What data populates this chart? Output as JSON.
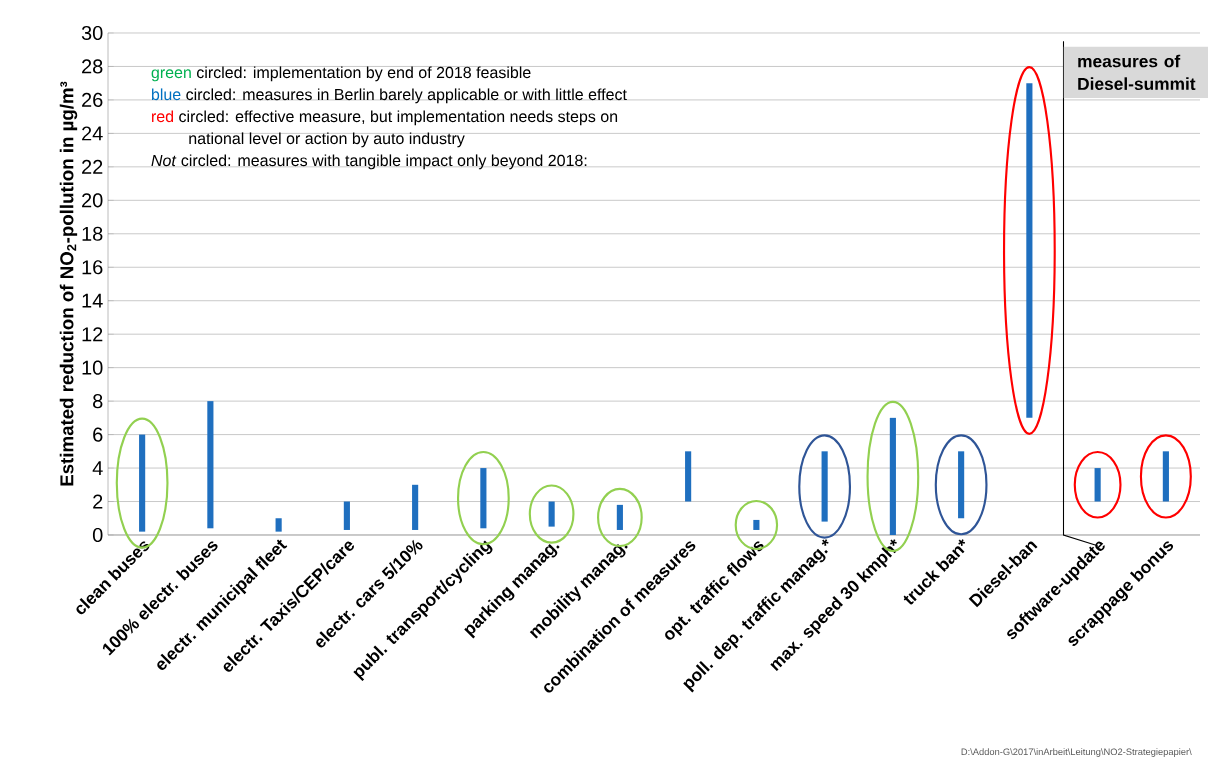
{
  "chart_data": {
    "type": "bar",
    "ylabel": "Estimated reduction of NO$_{2}$-pollution in µg/m³",
    "categories": [
      "clean buses",
      "100% electr. buses",
      "electr. municipal fleet",
      "electr. Taxis/CEP/care",
      "electr. cars 5/10%",
      "publ. transport/cycling",
      "parking manag.",
      "mobility manag.",
      "combination of measures",
      "opt. traffic flows",
      "poll. dep. traffic manag.*",
      "max. speed 30 kmph*",
      "truck ban*",
      "Diesel-ban",
      "software-update",
      "scrappage bonus"
    ],
    "base": [
      0.2,
      0.4,
      0.2,
      0.3,
      0.3,
      0.4,
      0.5,
      0.3,
      2,
      0.3,
      0.8,
      0,
      1,
      7,
      2,
      2
    ],
    "values": [
      5.8,
      7.6,
      0.8,
      1.7,
      2.7,
      3.6,
      1.5,
      1.5,
      3,
      0.6,
      4.2,
      7,
      4,
      20,
      2,
      3
    ],
    "color": "#1f6fbf",
    "ylim": [
      0,
      30
    ],
    "yticks": [
      0,
      2,
      4,
      6,
      8,
      10,
      12,
      14,
      16,
      18,
      20,
      22,
      24,
      26,
      28,
      30
    ],
    "grid": "y",
    "annotations": [
      "green",
      "circled: implementation by end of 2018 feasible",
      "blue",
      "circled: measures in Berlin barely applicable or with little effect",
      "red",
      "circled: effective measure, but implementation needs steps on",
      "national level or action by auto industry",
      "*Not* circled: measures with tangible impact only beyond 2018:",
      "measures of Diesel-summit",
      "D:\\Addon-G\\2017\\inArbeit\\Leitung\\NO2-Strategiepapier\\"
    ]
  }
}
